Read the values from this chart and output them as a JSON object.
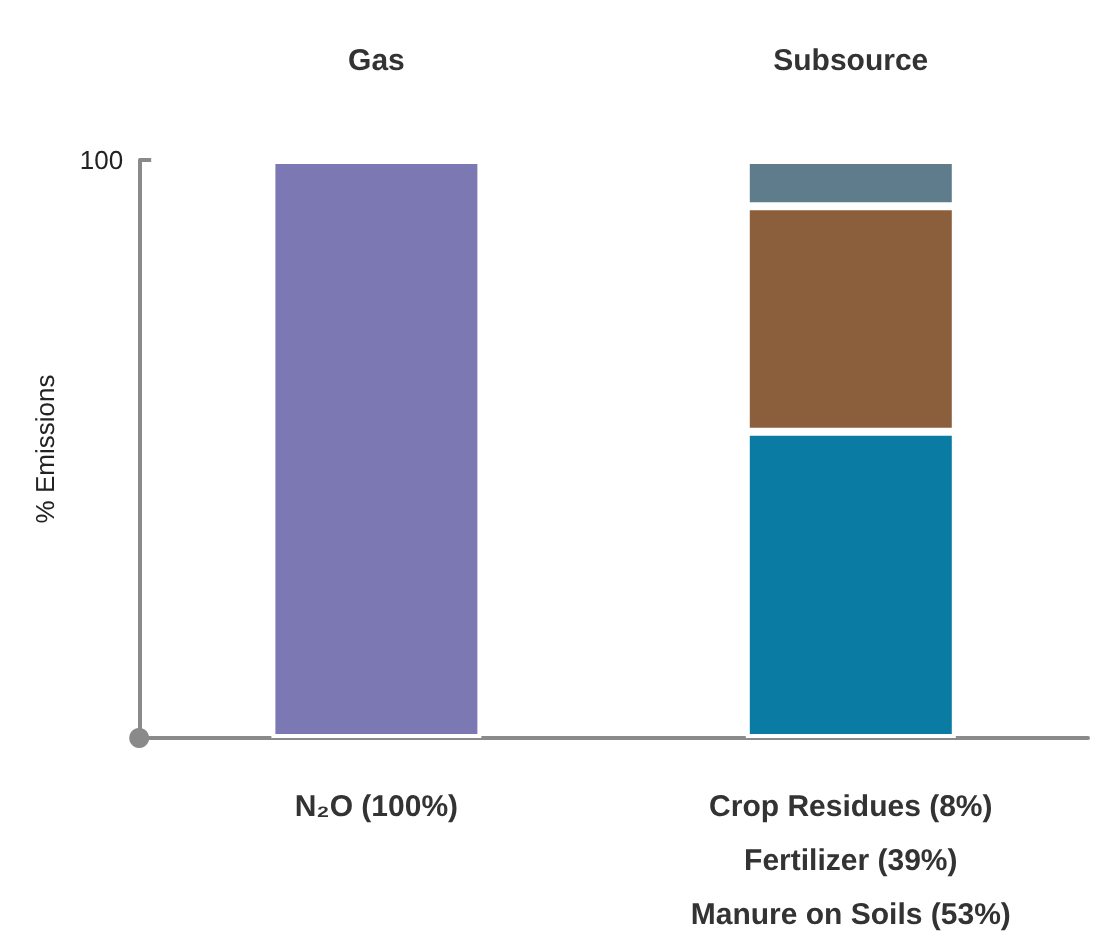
{
  "chart_data": {
    "type": "bar",
    "stacked": true,
    "ylabel": "% Emissions",
    "categories": [
      "Gas",
      "Subsource"
    ],
    "ylim": [
      0,
      100
    ],
    "yticks": [
      {
        "value": 0,
        "label": null
      },
      100
    ],
    "series": [
      {
        "color": "#7b78b4",
        "values": [
          100,
          null
        ]
      },
      {
        "color": "#0a7ca4",
        "values": [
          null,
          53
        ]
      },
      {
        "color": "#8b5e3c",
        "values": [
          null,
          39
        ]
      },
      {
        "color": "#5f7c8c",
        "values": [
          null,
          8
        ]
      }
    ],
    "annotations": [
      "N₂O (100%)",
      "Manure on Soils (53%)",
      "Fertilizer (39%)",
      "Crop Residues (8%)"
    ]
  }
}
